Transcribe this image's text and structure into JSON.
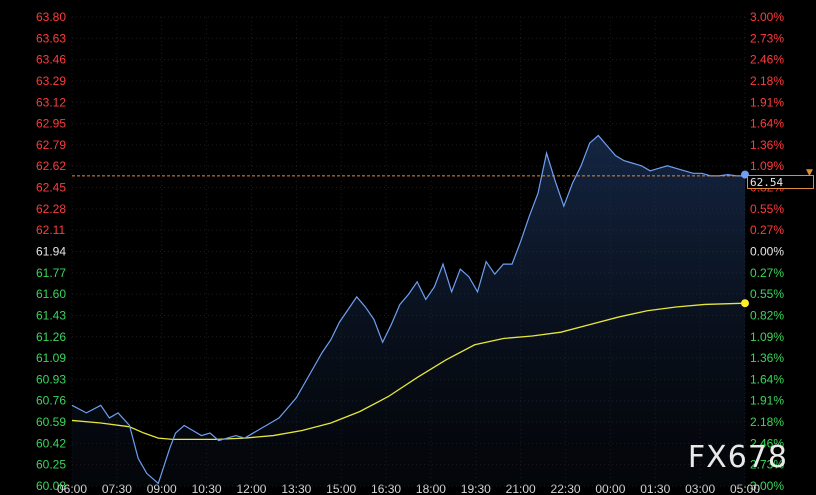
{
  "chart_data": {
    "type": "line",
    "x_ticks": [
      "06:00",
      "07:30",
      "09:00",
      "10:30",
      "12:00",
      "13:30",
      "15:00",
      "16:30",
      "18:00",
      "19:30",
      "21:00",
      "22:30",
      "00:00",
      "01:30",
      "03:00",
      "05:00"
    ],
    "y_ticks": [
      "63.80",
      "63.63",
      "63.46",
      "63.29",
      "63.12",
      "62.95",
      "62.79",
      "62.62",
      "62.45",
      "62.28",
      "62.11",
      "61.94",
      "61.77",
      "61.60",
      "61.43",
      "61.26",
      "61.09",
      "60.93",
      "60.76",
      "60.59",
      "60.42",
      "60.25",
      "60.08"
    ],
    "ylim": [
      60.08,
      63.8
    ],
    "reference_price": 61.94,
    "pct_ticks": [
      "3.00%",
      "2.73%",
      "2.46%",
      "2.18%",
      "1.91%",
      "1.64%",
      "1.36%",
      "1.09%",
      "0.82%",
      "0.55%",
      "0.27%",
      "0.00%",
      "0.27%",
      "0.55%",
      "0.82%",
      "1.09%",
      "1.36%",
      "1.64%",
      "1.91%",
      "2.18%",
      "2.46%",
      "2.73%",
      "3.00%"
    ],
    "current_price": 62.54,
    "current_price_label": "62.54",
    "series": [
      {
        "color": "#6f9ff2",
        "x": [
          0,
          0.5,
          1,
          1.3,
          1.6,
          2.0,
          2.3,
          2.6,
          2.9,
          3.0,
          3.2,
          3.4,
          3.6,
          3.9,
          4.2,
          4.5,
          4.8,
          5.1,
          5.4,
          5.7,
          6.0,
          6.3,
          6.6,
          6.9,
          7.2,
          7.5,
          7.8,
          8.1,
          8.4,
          8.7,
          9.0,
          9.3,
          9.6,
          9.9,
          10.2,
          10.5,
          10.8,
          11.1,
          11.4,
          11.7,
          12.0,
          12.3,
          12.6,
          12.9,
          13.2,
          13.5,
          13.8,
          14.1,
          14.4,
          14.7,
          15.0,
          15.3,
          15.6,
          15.9,
          16.2,
          16.5,
          16.8,
          17.1,
          17.4,
          17.7,
          18.0,
          18.3,
          18.6,
          18.9,
          19.2,
          19.5,
          19.8,
          20.1,
          20.4,
          20.7,
          21.0,
          21.3,
          21.6,
          21.9,
          22.2,
          22.5,
          22.8,
          23.1,
          23.4
        ],
        "y": [
          60.72,
          60.66,
          60.72,
          60.62,
          60.66,
          60.56,
          60.3,
          60.18,
          60.12,
          60.1,
          60.24,
          60.38,
          60.5,
          60.56,
          60.52,
          60.48,
          60.5,
          60.44,
          60.46,
          60.48,
          60.46,
          60.5,
          60.54,
          60.58,
          60.62,
          60.7,
          60.78,
          60.9,
          61.02,
          61.14,
          61.24,
          61.38,
          61.48,
          61.58,
          61.5,
          61.4,
          61.22,
          61.36,
          61.52,
          61.6,
          61.7,
          61.56,
          61.66,
          61.84,
          61.62,
          61.8,
          61.74,
          61.62,
          61.86,
          61.76,
          61.84,
          61.84,
          62.02,
          62.22,
          62.4,
          62.72,
          62.5,
          62.3,
          62.48,
          62.62,
          62.8,
          62.86,
          62.78,
          62.7,
          62.66,
          62.64,
          62.62,
          62.58,
          62.6,
          62.62,
          62.6,
          62.58,
          62.56,
          62.56,
          62.54,
          62.54,
          62.55,
          62.54,
          62.54
        ]
      },
      {
        "color": "#e6e63a",
        "x": [
          0,
          1,
          2,
          2.5,
          3,
          3.5,
          4,
          5,
          6,
          7,
          8,
          9,
          10,
          11,
          12,
          13,
          14,
          14.4,
          15,
          16,
          17,
          18,
          19,
          20,
          21,
          22,
          23.4
        ],
        "y": [
          60.6,
          60.58,
          60.55,
          60.5,
          60.46,
          60.45,
          60.45,
          60.45,
          60.46,
          60.48,
          60.52,
          60.58,
          60.67,
          60.79,
          60.94,
          61.08,
          61.2,
          61.22,
          61.25,
          61.27,
          61.3,
          61.36,
          61.42,
          61.47,
          61.5,
          61.52,
          61.53
        ]
      }
    ],
    "x_range": [
      0,
      23.4
    ]
  },
  "watermark": "FX678"
}
